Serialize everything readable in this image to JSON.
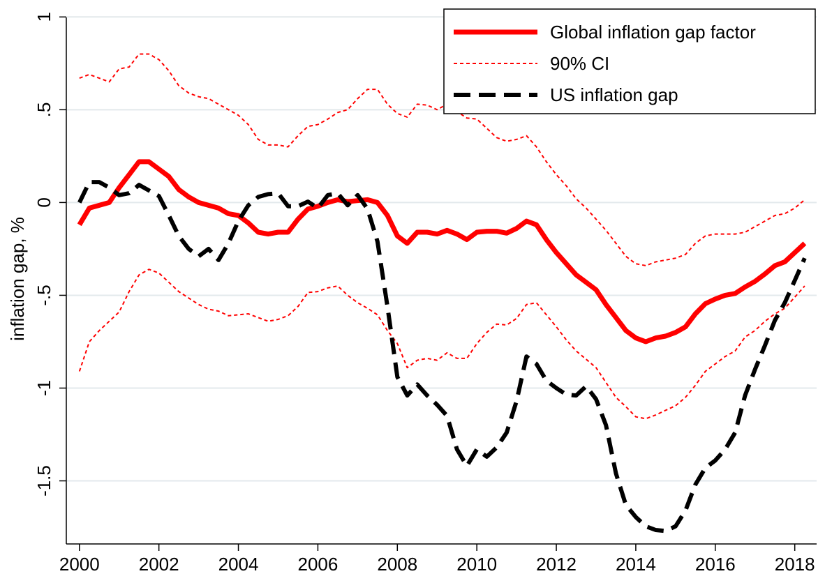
{
  "chart_data": {
    "type": "line",
    "y_label": "inflation gap, %",
    "x": [
      2000,
      2000.25,
      2000.5,
      2000.75,
      2001,
      2001.25,
      2001.5,
      2001.75,
      2002,
      2002.25,
      2002.5,
      2002.75,
      2003,
      2003.25,
      2003.5,
      2003.75,
      2004,
      2004.25,
      2004.5,
      2004.75,
      2005,
      2005.25,
      2005.5,
      2005.75,
      2006,
      2006.25,
      2006.5,
      2006.75,
      2007,
      2007.25,
      2007.5,
      2007.75,
      2008,
      2008.25,
      2008.5,
      2008.75,
      2009,
      2009.25,
      2009.5,
      2009.75,
      2010,
      2010.25,
      2010.5,
      2010.75,
      2011,
      2011.25,
      2011.5,
      2011.75,
      2012,
      2012.25,
      2012.5,
      2012.75,
      2013,
      2013.25,
      2013.5,
      2013.75,
      2014,
      2014.25,
      2014.5,
      2014.75,
      2015,
      2015.25,
      2015.5,
      2015.75,
      2016,
      2016.25,
      2016.5,
      2016.75,
      2017,
      2017.25,
      2017.5,
      2017.75,
      2018,
      2018.25
    ],
    "series": [
      {
        "name": "Global inflation gap factor",
        "color": "#ff0000",
        "style": "solid",
        "values": [
          -0.12,
          -0.03,
          -0.015,
          0,
          0.08,
          0.15,
          0.22,
          0.22,
          0.18,
          0.14,
          0.07,
          0.03,
          0,
          -0.015,
          -0.03,
          -0.06,
          -0.07,
          -0.11,
          -0.16,
          -0.17,
          -0.16,
          -0.16,
          -0.09,
          -0.035,
          -0.02,
          0,
          0.015,
          0.005,
          0.01,
          0.015,
          0,
          -0.07,
          -0.18,
          -0.22,
          -0.16,
          -0.16,
          -0.17,
          -0.15,
          -0.17,
          -0.2,
          -0.16,
          -0.155,
          -0.155,
          -0.165,
          -0.14,
          -0.1,
          -0.12,
          -0.2,
          -0.27,
          -0.33,
          -0.39,
          -0.43,
          -0.47,
          -0.55,
          -0.62,
          -0.69,
          -0.73,
          -0.75,
          -0.73,
          -0.72,
          -0.7,
          -0.67,
          -0.6,
          -0.545,
          -0.52,
          -0.5,
          -0.49,
          -0.455,
          -0.425,
          -0.385,
          -0.34,
          -0.32,
          -0.27,
          -0.22
        ]
      },
      {
        "name": "90% CI",
        "color": "#ff0000",
        "style": "dotted",
        "values": [
          0.67,
          0.69,
          0.67,
          0.65,
          0.72,
          0.73,
          0.8,
          0.8,
          0.77,
          0.71,
          0.63,
          0.59,
          0.57,
          0.56,
          0.53,
          0.5,
          0.47,
          0.42,
          0.34,
          0.31,
          0.31,
          0.3,
          0.36,
          0.41,
          0.42,
          0.45,
          0.485,
          0.5,
          0.56,
          0.61,
          0.61,
          0.53,
          0.48,
          0.46,
          0.53,
          0.525,
          0.5,
          0.53,
          0.49,
          0.455,
          0.45,
          0.4,
          0.35,
          0.33,
          0.34,
          0.36,
          0.3,
          0.22,
          0.15,
          0.09,
          0.02,
          -0.03,
          -0.09,
          -0.15,
          -0.22,
          -0.29,
          -0.33,
          -0.34,
          -0.32,
          -0.31,
          -0.3,
          -0.28,
          -0.22,
          -0.18,
          -0.17,
          -0.17,
          -0.17,
          -0.16,
          -0.13,
          -0.1,
          -0.07,
          -0.06,
          -0.03,
          0.015
        ]
      },
      {
        "color": "#ff0000",
        "style": "dotted",
        "values": [
          -0.91,
          -0.75,
          -0.69,
          -0.64,
          -0.59,
          -0.48,
          -0.39,
          -0.36,
          -0.38,
          -0.43,
          -0.48,
          -0.515,
          -0.55,
          -0.575,
          -0.585,
          -0.61,
          -0.605,
          -0.6,
          -0.62,
          -0.64,
          -0.63,
          -0.61,
          -0.56,
          -0.485,
          -0.48,
          -0.46,
          -0.45,
          -0.5,
          -0.54,
          -0.57,
          -0.605,
          -0.69,
          -0.76,
          -0.89,
          -0.85,
          -0.84,
          -0.85,
          -0.81,
          -0.84,
          -0.84,
          -0.76,
          -0.7,
          -0.655,
          -0.66,
          -0.625,
          -0.55,
          -0.54,
          -0.605,
          -0.67,
          -0.74,
          -0.8,
          -0.845,
          -0.89,
          -0.97,
          -1.05,
          -1.1,
          -1.155,
          -1.165,
          -1.145,
          -1.12,
          -1.095,
          -1.05,
          -0.985,
          -0.91,
          -0.87,
          -0.83,
          -0.8,
          -0.725,
          -0.69,
          -0.64,
          -0.6,
          -0.57,
          -0.51,
          -0.45
        ]
      },
      {
        "name": "US inflation gap",
        "color": "#000000",
        "style": "dashed",
        "values": [
          0,
          0.11,
          0.11,
          0.08,
          0.04,
          0.05,
          0.095,
          0.065,
          0.035,
          -0.07,
          -0.18,
          -0.25,
          -0.29,
          -0.25,
          -0.31,
          -0.22,
          -0.1,
          -0.015,
          0.03,
          0.045,
          0.05,
          -0.02,
          -0.02,
          0.005,
          -0.03,
          0.04,
          0.05,
          -0.015,
          0.04,
          -0.035,
          -0.21,
          -0.56,
          -0.94,
          -1.04,
          -0.98,
          -1.04,
          -1.09,
          -1.15,
          -1.33,
          -1.42,
          -1.33,
          -1.37,
          -1.32,
          -1.24,
          -1.07,
          -0.83,
          -0.87,
          -0.96,
          -1,
          -1.035,
          -1.04,
          -0.99,
          -1.06,
          -1.2,
          -1.46,
          -1.63,
          -1.695,
          -1.745,
          -1.765,
          -1.77,
          -1.745,
          -1.66,
          -1.52,
          -1.43,
          -1.39,
          -1.33,
          -1.24,
          -1.04,
          -0.9,
          -0.77,
          -0.635,
          -0.54,
          -0.42,
          -0.3
        ]
      }
    ],
    "xlim": [
      1999.67,
      2018.55
    ],
    "xticks": [
      2000,
      2002,
      2004,
      2006,
      2008,
      2010,
      2012,
      2014,
      2016,
      2018
    ],
    "ylim": [
      -1.84,
      1.05
    ],
    "yticks": [
      {
        "value": -1.5,
        "label": "-1.5"
      },
      -1,
      {
        "value": -0.5,
        "label": "-.5"
      },
      0,
      {
        "value": 0.5,
        "label": ".5"
      },
      1
    ],
    "grid": true,
    "legend": "upper right"
  }
}
